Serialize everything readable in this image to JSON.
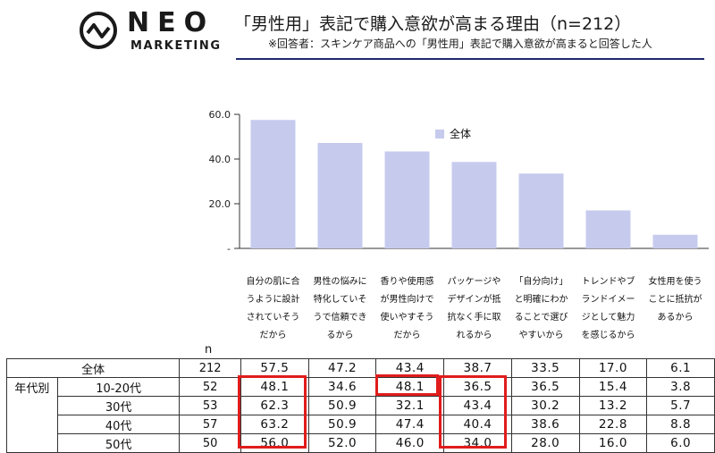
{
  "logo": {
    "word": "NEO",
    "sub": "MARKETING"
  },
  "header": {
    "title": "「男性用」表記で購入意欲が高まる理由（n=212）",
    "subtitle": "※回答者：スキンケア商品への「男性用」表記で購入意欲が高まると回答した人"
  },
  "chart_data": {
    "type": "bar",
    "categories": [
      "自分の肌に合\nうように設計\nされていそう\nだから",
      "男性の悩みに\n特化していそ\nうで信頼でき\nるから",
      "香りや使用感\nが男性向けで\n使いやすそう\nだから",
      "パッケージや\nデザインが抵\n抗なく手に取\nれるから",
      "「自分向け」\nと明確にわか\nることで選び\nやすいから",
      "トレンドやブ\nランドイメー\nジとして魅力\nを感じるから",
      "女性用を使う\nことに抵抗が\nあるから"
    ],
    "series": [
      {
        "name": "全体",
        "values": [
          57.5,
          47.2,
          43.4,
          38.7,
          33.5,
          17.0,
          6.1
        ]
      }
    ],
    "ytick_labels": [
      "-",
      "20.0",
      "40.0",
      "60.0"
    ],
    "ylim": [
      0,
      60
    ],
    "legend_position": "top-right",
    "bar_color": "#c6cbee"
  },
  "table": {
    "n_header": "n",
    "group_label": "年代別",
    "rows": [
      {
        "label": "全体",
        "n": "212",
        "values": [
          "57.5",
          "47.2",
          "43.4",
          "38.7",
          "33.5",
          "17.0",
          "6.1"
        ]
      },
      {
        "label": "10-20代",
        "n": "52",
        "values": [
          "48.1",
          "34.6",
          "48.1",
          "36.5",
          "36.5",
          "15.4",
          "3.8"
        ]
      },
      {
        "label": "30代",
        "n": "53",
        "values": [
          "62.3",
          "50.9",
          "32.1",
          "43.4",
          "30.2",
          "13.2",
          "5.7"
        ]
      },
      {
        "label": "40代",
        "n": "57",
        "values": [
          "63.2",
          "50.9",
          "47.4",
          "40.4",
          "38.6",
          "22.8",
          "8.8"
        ]
      },
      {
        "label": "50代",
        "n": "50",
        "values": [
          "56.0",
          "52.0",
          "46.0",
          "34.0",
          "28.0",
          "16.0",
          "6.0"
        ]
      }
    ]
  }
}
